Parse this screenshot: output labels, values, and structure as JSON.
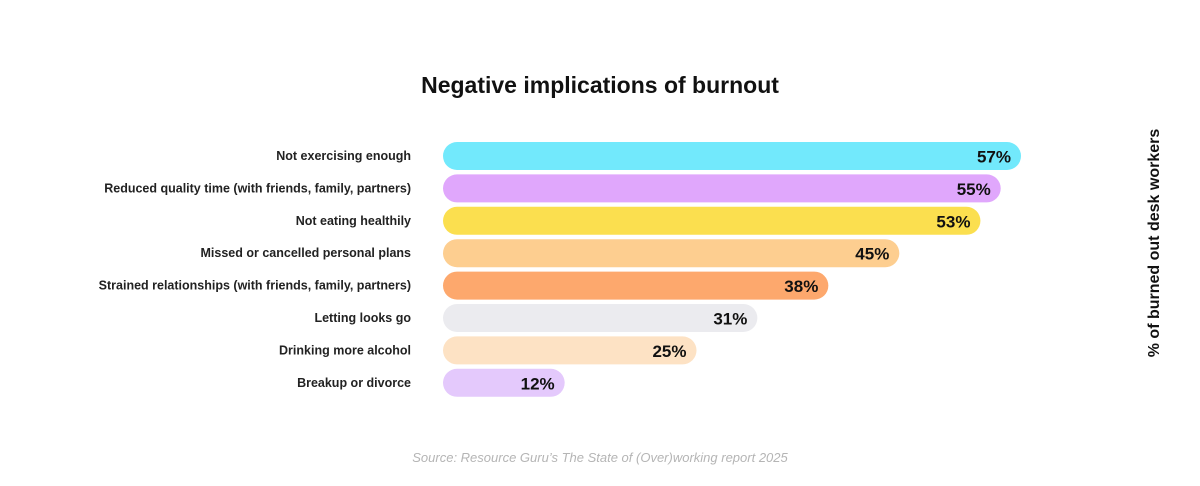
{
  "chart_data": {
    "type": "bar",
    "orientation": "horizontal",
    "title": "Negative implications of burnout",
    "ylabel": "% of burned out desk workers",
    "source": "Source: Resource Guru’s The State of (Over)working report 2025",
    "categories": [
      "Not exercising enough",
      "Reduced quality time (with friends, family, partners)",
      "Not eating healthily",
      "Missed or cancelled personal plans",
      "Strained relationships (with friends, family, partners)",
      "Letting looks go",
      "Drinking more alcohol",
      "Breakup or divorce"
    ],
    "values": [
      57,
      55,
      53,
      45,
      38,
      31,
      25,
      12
    ],
    "value_labels": [
      "57%",
      "55%",
      "53%",
      "45%",
      "38%",
      "31%",
      "25%",
      "12%"
    ],
    "colors": [
      "#72e9fc",
      "#e0a7fc",
      "#fbdf4f",
      "#fdce90",
      "#fda86d",
      "#ebebef",
      "#fde2c4",
      "#e4c9fc"
    ],
    "xlim": [
      0,
      57
    ],
    "grid": false,
    "legend": "none"
  }
}
